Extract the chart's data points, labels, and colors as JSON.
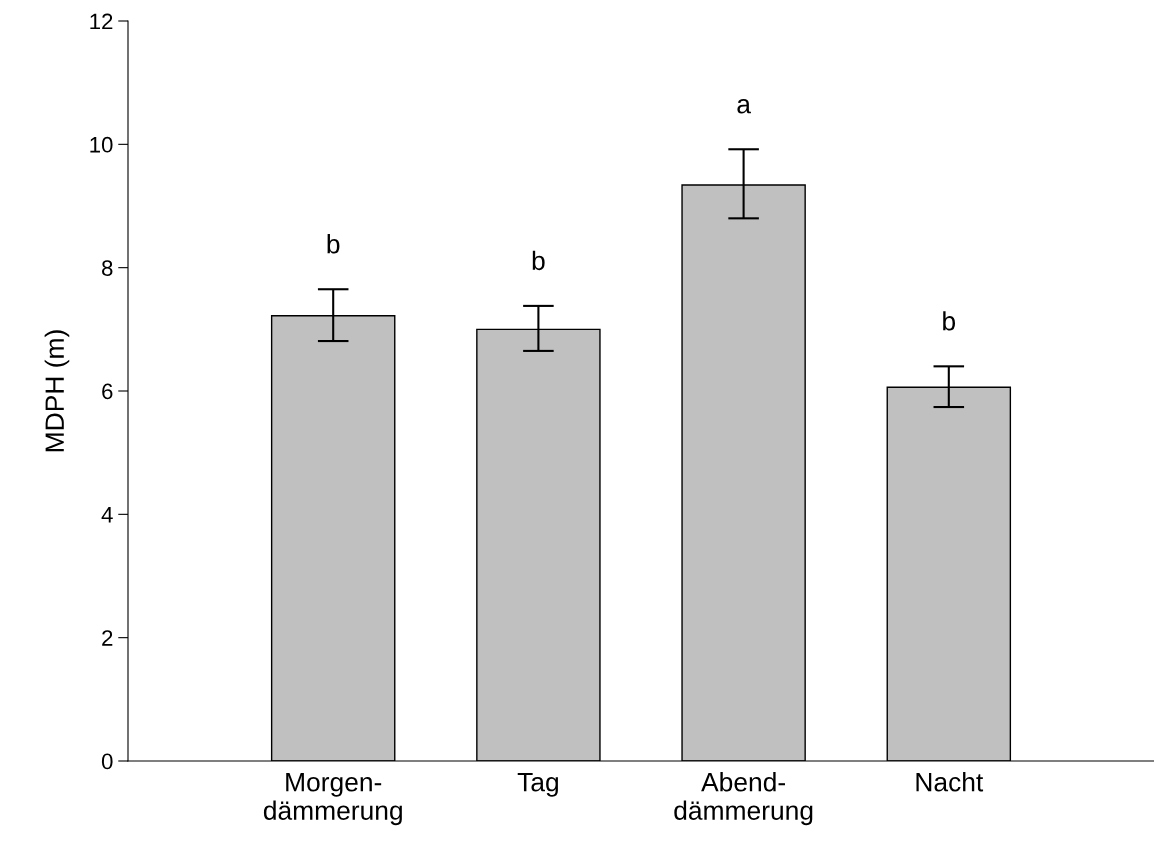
{
  "chart_data": {
    "type": "bar",
    "ylabel": "MDPH (m)",
    "categories": [
      "Morgen-\ndämmerung",
      "Tag",
      "Abend-\ndämmerung",
      "Nacht"
    ],
    "values": [
      7.22,
      7.0,
      9.34,
      6.06
    ],
    "errors": [
      [
        6.81,
        7.65
      ],
      [
        6.65,
        7.38
      ],
      [
        8.8,
        9.92
      ],
      [
        5.74,
        6.4
      ]
    ],
    "color": "#c0c0c0",
    "ylim": [
      0,
      12
    ],
    "yticks": [
      0,
      2,
      4,
      6,
      8,
      10,
      12
    ],
    "annotations": [
      "b",
      "b",
      "a",
      "b"
    ],
    "grid": false,
    "legend": false
  }
}
